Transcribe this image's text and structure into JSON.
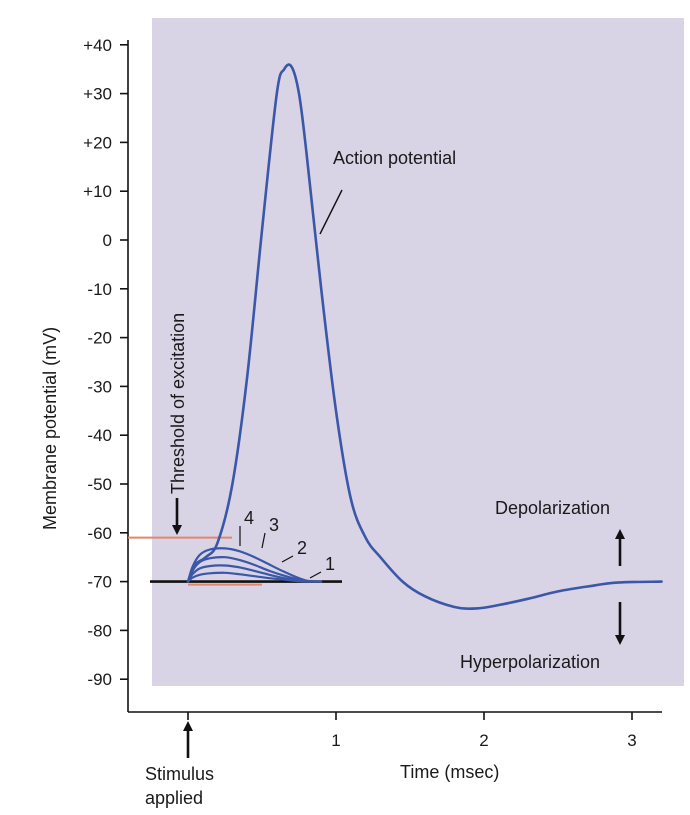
{
  "chart_data": {
    "type": "line",
    "title": "",
    "xlabel": "Time (msec)",
    "ylabel": "Membrane potential (mV)",
    "xlim": [
      -0.4,
      3.2
    ],
    "ylim": [
      -95,
      40
    ],
    "y_ticks": [
      "+40",
      "+30",
      "+20",
      "+10",
      "0",
      "-10",
      "-20",
      "-30",
      "-40",
      "-50",
      "-60",
      "-70",
      "-80",
      "-90"
    ],
    "y_tick_values": [
      40,
      30,
      20,
      10,
      0,
      -10,
      -20,
      -30,
      -40,
      -50,
      -60,
      -70,
      -80,
      -90
    ],
    "x_ticks": [
      "1",
      "2",
      "3"
    ],
    "x_tick_values": [
      1,
      2,
      3
    ],
    "resting_potential": -70,
    "threshold_potential": -61,
    "colors": {
      "background": "#d9d3e6",
      "trace": "#3a57a8",
      "threshold": "#e2876c",
      "axis": "#111111"
    },
    "series": [
      {
        "name": "Action potential",
        "x": [
          0,
          0.05,
          0.12,
          0.2,
          0.3,
          0.4,
          0.5,
          0.6,
          0.65,
          0.7,
          0.75,
          0.8,
          0.9,
          1.0,
          1.1,
          1.2,
          1.3,
          1.45,
          1.6,
          1.8,
          1.95,
          2.1,
          2.3,
          2.5,
          2.7,
          2.9,
          3.2
        ],
        "y": [
          -70,
          -66.5,
          -65,
          -62,
          -50,
          -28,
          2,
          30,
          35,
          35.5,
          30,
          18,
          -10,
          -35,
          -53,
          -61,
          -65,
          -70,
          -73,
          -75.2,
          -75.5,
          -74.8,
          -73.5,
          -72,
          -71,
          -70.2,
          -70
        ]
      },
      {
        "name": "4",
        "x": [
          0,
          0.03,
          0.08,
          0.15,
          0.25,
          0.35,
          0.45,
          0.55,
          0.65,
          0.75,
          0.82
        ],
        "y": [
          -70,
          -67,
          -64.5,
          -63.4,
          -63.2,
          -63.8,
          -65,
          -66.5,
          -68,
          -69.3,
          -70
        ]
      },
      {
        "name": "3",
        "x": [
          0,
          0.03,
          0.08,
          0.15,
          0.25,
          0.35,
          0.45,
          0.55,
          0.65,
          0.75,
          0.85
        ],
        "y": [
          -70,
          -67.8,
          -66,
          -65.2,
          -65,
          -65.6,
          -66.6,
          -67.8,
          -68.8,
          -69.6,
          -70
        ]
      },
      {
        "name": "2",
        "x": [
          0,
          0.03,
          0.08,
          0.15,
          0.25,
          0.35,
          0.45,
          0.55,
          0.65,
          0.75,
          0.87
        ],
        "y": [
          -70,
          -68.5,
          -67.3,
          -66.8,
          -66.7,
          -67.1,
          -67.8,
          -68.6,
          -69.3,
          -69.8,
          -70
        ]
      },
      {
        "name": "1",
        "x": [
          0,
          0.03,
          0.08,
          0.15,
          0.25,
          0.35,
          0.45,
          0.55,
          0.65,
          0.75,
          0.9
        ],
        "y": [
          -70,
          -69.2,
          -68.6,
          -68.3,
          -68.2,
          -68.5,
          -68.9,
          -69.3,
          -69.6,
          -69.9,
          -70
        ]
      }
    ],
    "annotations": {
      "action_potential": "Action potential",
      "threshold": "Threshold of excitation",
      "depolarization": "Depolarization",
      "hyperpolarization": "Hyperpolarization",
      "stimulus_line1": "Stimulus",
      "stimulus_line2": "applied"
    }
  }
}
